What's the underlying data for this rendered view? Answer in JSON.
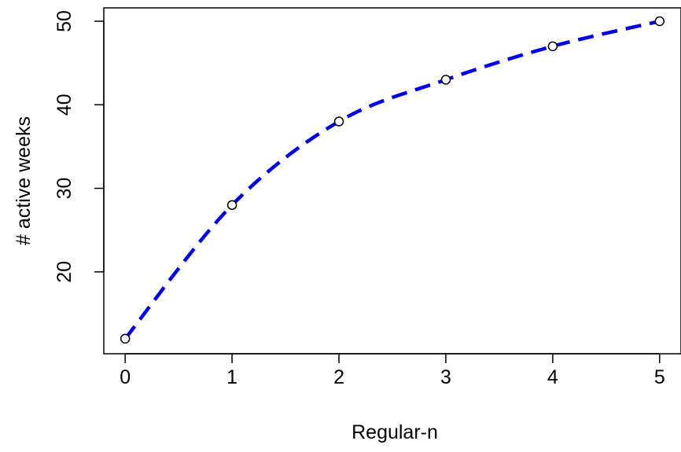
{
  "chart_data": {
    "type": "line",
    "title": "",
    "xlabel": "Regular-n",
    "ylabel": "# active weeks",
    "x": [
      0,
      1,
      2,
      3,
      4,
      5
    ],
    "series": [
      {
        "values": [
          12,
          28,
          38,
          43,
          47,
          50
        ],
        "color": "#0000ee",
        "line_style": "dashed",
        "marker": "open-circle"
      }
    ],
    "xlim": [
      -0.2,
      5.2
    ],
    "ylim": [
      10.2,
      51.6
    ],
    "xticks": [
      0,
      1,
      2,
      3,
      4,
      5
    ],
    "xtick_labels": [
      "0",
      "1",
      "2",
      "3",
      "4",
      "5"
    ],
    "yticks": [
      20,
      30,
      40,
      50
    ],
    "ytick_labels": [
      "20",
      "30",
      "40",
      "50"
    ],
    "grid": false,
    "legend": "none"
  }
}
